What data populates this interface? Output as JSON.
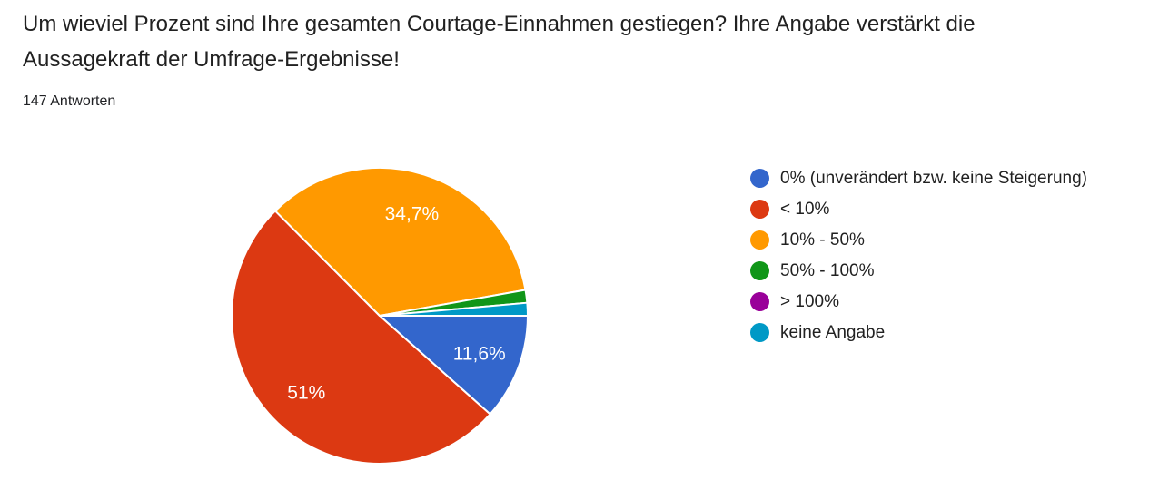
{
  "header": {
    "title": "Um wieviel Prozent sind Ihre gesamten Courtage-Einnahmen gestiegen? Ihre Angabe verstärkt die\nAussagekraft der Umfrage-Ergebnisse!",
    "responses_count": "147 Antworten"
  },
  "chart_data": {
    "type": "pie",
    "title": "Um wieviel Prozent sind Ihre gesamten Courtage-Einnahmen gestiegen? Ihre Angabe verstärkt die Aussagekraft der Umfrage-Ergebnisse!",
    "legend_position": "right",
    "start_angle_deg": 0,
    "direction": "clockwise",
    "slice_border_color": "#ffffff",
    "slices": [
      {
        "label": "0% (unverändert bzw. keine Steigerung)",
        "value_pct": 11.6,
        "display_label": "11,6%",
        "color": "#3366CC"
      },
      {
        "label": "< 10%",
        "value_pct": 51,
        "display_label": "51%",
        "color": "#DC3912"
      },
      {
        "label": "10% - 50%",
        "value_pct": 34.7,
        "display_label": "34,7%",
        "color": "#FF9900"
      },
      {
        "label": "50% - 100%",
        "value_pct": 1.4,
        "display_label": "",
        "color": "#109618"
      },
      {
        "label": "> 100%",
        "value_pct": 0,
        "display_label": "",
        "color": "#990099"
      },
      {
        "label": "keine Angabe",
        "value_pct": 1.4,
        "display_label": "",
        "color": "#0099C6"
      }
    ]
  }
}
